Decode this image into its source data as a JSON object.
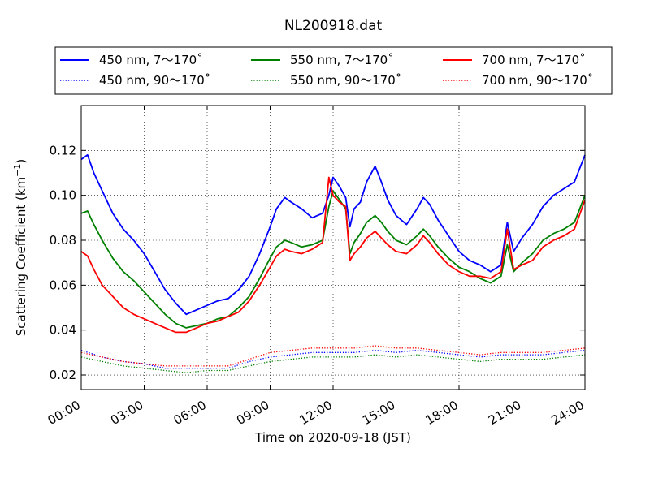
{
  "chart_data": {
    "type": "line",
    "title": "NL200918.dat",
    "xlabel": "Time on 2020-09-18 (JST)",
    "ylabel_main": "Scattering Coefficient (km",
    "ylabel_sup": "−1",
    "ylabel_end": ")",
    "xlim": [
      0,
      24
    ],
    "ylim": [
      0.0135,
      0.14
    ],
    "grid": true,
    "legend_position": "top (above plot, 3 columns)",
    "x_ticks": [
      0,
      3,
      6,
      9,
      12,
      15,
      18,
      21,
      24
    ],
    "x_tick_labels": [
      "00:00",
      "03:00",
      "06:00",
      "09:00",
      "12:00",
      "15:00",
      "18:00",
      "21:00",
      "24:00"
    ],
    "y_ticks": [
      0.02,
      0.04,
      0.06,
      0.08,
      0.1,
      0.12
    ],
    "y_tick_labels": [
      "0.02",
      "0.04",
      "0.06",
      "0.08",
      "0.10",
      "0.12"
    ],
    "x_unit": "hours since 00:00 JST",
    "series": [
      {
        "name": "450 nm, 7～170˚",
        "color": "#0000ff",
        "style": "solid",
        "x": [
          0,
          0.3,
          0.6,
          1,
          1.5,
          2,
          2.5,
          3,
          3.5,
          4,
          4.5,
          5,
          5.5,
          6,
          6.5,
          7,
          7.5,
          8,
          8.5,
          9,
          9.3,
          9.7,
          10,
          10.5,
          11,
          11.5,
          11.8,
          12,
          12.3,
          12.6,
          12.8,
          13,
          13.3,
          13.6,
          14,
          14.3,
          14.6,
          15,
          15.5,
          16,
          16.3,
          16.6,
          17,
          17.5,
          18,
          18.5,
          19,
          19.5,
          20,
          20.3,
          20.6,
          21,
          21.5,
          22,
          22.5,
          23,
          23.5,
          24
        ],
        "y": [
          0.116,
          0.118,
          0.11,
          0.102,
          0.092,
          0.085,
          0.08,
          0.074,
          0.066,
          0.058,
          0.052,
          0.047,
          0.049,
          0.051,
          0.053,
          0.054,
          0.058,
          0.064,
          0.074,
          0.086,
          0.094,
          0.099,
          0.097,
          0.094,
          0.09,
          0.092,
          0.1,
          0.108,
          0.104,
          0.099,
          0.086,
          0.094,
          0.097,
          0.106,
          0.113,
          0.106,
          0.098,
          0.091,
          0.087,
          0.094,
          0.099,
          0.096,
          0.089,
          0.082,
          0.075,
          0.071,
          0.069,
          0.066,
          0.069,
          0.088,
          0.075,
          0.081,
          0.087,
          0.095,
          0.1,
          0.103,
          0.106,
          0.118
        ]
      },
      {
        "name": "550 nm, 7～170˚",
        "color": "#008000",
        "style": "solid",
        "x": [
          0,
          0.3,
          0.6,
          1,
          1.5,
          2,
          2.5,
          3,
          3.5,
          4,
          4.5,
          5,
          5.5,
          6,
          6.5,
          7,
          7.5,
          8,
          8.5,
          9,
          9.3,
          9.7,
          10,
          10.5,
          11,
          11.5,
          11.8,
          12,
          12.3,
          12.6,
          12.8,
          13,
          13.3,
          13.6,
          14,
          14.3,
          14.6,
          15,
          15.5,
          16,
          16.3,
          16.6,
          17,
          17.5,
          18,
          18.5,
          19,
          19.5,
          20,
          20.3,
          20.6,
          21,
          21.5,
          22,
          22.5,
          23,
          23.5,
          24
        ],
        "y": [
          0.092,
          0.093,
          0.087,
          0.08,
          0.072,
          0.066,
          0.062,
          0.057,
          0.052,
          0.047,
          0.043,
          0.041,
          0.042,
          0.043,
          0.045,
          0.046,
          0.05,
          0.055,
          0.063,
          0.072,
          0.077,
          0.08,
          0.079,
          0.077,
          0.078,
          0.08,
          0.095,
          0.102,
          0.098,
          0.094,
          0.074,
          0.079,
          0.083,
          0.088,
          0.091,
          0.088,
          0.084,
          0.08,
          0.078,
          0.082,
          0.085,
          0.082,
          0.077,
          0.072,
          0.068,
          0.066,
          0.063,
          0.061,
          0.064,
          0.078,
          0.066,
          0.07,
          0.074,
          0.08,
          0.083,
          0.085,
          0.088,
          0.1
        ]
      },
      {
        "name": "700 nm, 7～170˚",
        "color": "#ff0000",
        "style": "solid",
        "x": [
          0,
          0.3,
          0.6,
          1,
          1.5,
          2,
          2.5,
          3,
          3.5,
          4,
          4.5,
          5,
          5.5,
          6,
          6.5,
          7,
          7.5,
          8,
          8.5,
          9,
          9.3,
          9.7,
          10,
          10.5,
          11,
          11.5,
          11.8,
          12,
          12.3,
          12.6,
          12.8,
          13,
          13.3,
          13.6,
          14,
          14.3,
          14.6,
          15,
          15.5,
          16,
          16.3,
          16.6,
          17,
          17.5,
          18,
          18.5,
          19,
          19.5,
          20,
          20.3,
          20.6,
          21,
          21.5,
          22,
          22.5,
          23,
          23.5,
          24
        ],
        "y": [
          0.075,
          0.073,
          0.067,
          0.06,
          0.055,
          0.05,
          0.047,
          0.045,
          0.043,
          0.041,
          0.039,
          0.039,
          0.041,
          0.043,
          0.044,
          0.046,
          0.048,
          0.053,
          0.06,
          0.068,
          0.073,
          0.076,
          0.075,
          0.074,
          0.076,
          0.079,
          0.108,
          0.1,
          0.097,
          0.095,
          0.071,
          0.074,
          0.077,
          0.081,
          0.084,
          0.081,
          0.078,
          0.075,
          0.074,
          0.078,
          0.082,
          0.079,
          0.074,
          0.069,
          0.066,
          0.064,
          0.064,
          0.063,
          0.066,
          0.085,
          0.067,
          0.069,
          0.071,
          0.077,
          0.08,
          0.082,
          0.085,
          0.098
        ]
      },
      {
        "name": "450 nm, 90～170˚",
        "color": "#0000ff",
        "style": "dotted",
        "x": [
          0,
          1,
          2,
          3,
          4,
          5,
          6,
          7,
          8,
          9,
          10,
          11,
          12,
          13,
          14,
          15,
          16,
          17,
          18,
          19,
          20,
          21,
          22,
          23,
          24
        ],
        "y": [
          0.031,
          0.028,
          0.026,
          0.025,
          0.023,
          0.023,
          0.023,
          0.023,
          0.026,
          0.028,
          0.029,
          0.03,
          0.03,
          0.03,
          0.031,
          0.03,
          0.031,
          0.03,
          0.029,
          0.028,
          0.029,
          0.029,
          0.029,
          0.03,
          0.031
        ]
      },
      {
        "name": "550 nm, 90～170˚",
        "color": "#008000",
        "style": "dotted",
        "x": [
          0,
          1,
          2,
          3,
          4,
          5,
          6,
          7,
          8,
          9,
          10,
          11,
          12,
          13,
          14,
          15,
          16,
          17,
          18,
          19,
          20,
          21,
          22,
          23,
          24
        ],
        "y": [
          0.028,
          0.026,
          0.024,
          0.023,
          0.022,
          0.021,
          0.022,
          0.022,
          0.024,
          0.026,
          0.027,
          0.028,
          0.028,
          0.028,
          0.029,
          0.028,
          0.029,
          0.028,
          0.027,
          0.026,
          0.027,
          0.027,
          0.027,
          0.028,
          0.029
        ]
      },
      {
        "name": "700 nm, 90～170˚",
        "color": "#ff0000",
        "style": "dotted",
        "x": [
          0,
          1,
          2,
          3,
          4,
          5,
          6,
          7,
          8,
          9,
          10,
          11,
          12,
          13,
          14,
          15,
          16,
          17,
          18,
          19,
          20,
          21,
          22,
          23,
          24
        ],
        "y": [
          0.03,
          0.028,
          0.026,
          0.025,
          0.024,
          0.024,
          0.024,
          0.024,
          0.027,
          0.03,
          0.031,
          0.032,
          0.032,
          0.032,
          0.033,
          0.032,
          0.032,
          0.031,
          0.03,
          0.029,
          0.03,
          0.03,
          0.03,
          0.031,
          0.032
        ]
      }
    ]
  }
}
